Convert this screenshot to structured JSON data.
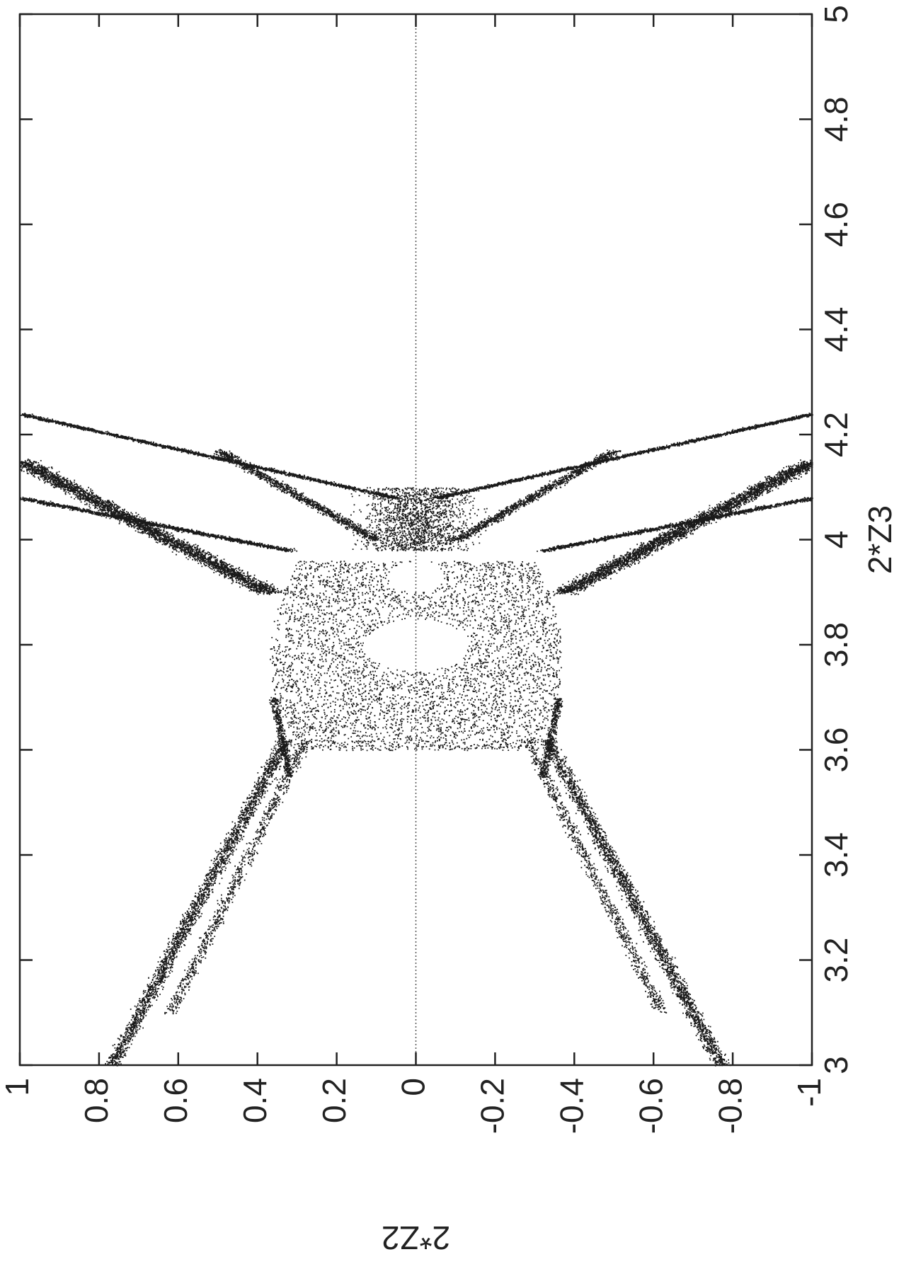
{
  "chart_data": {
    "type": "scatter",
    "orientation": "rotated-90-clockwise",
    "xlabel": "2*Z3",
    "ylabel": "2*Z2",
    "xlim": [
      3,
      5
    ],
    "ylim": [
      -1,
      1
    ],
    "x_ticks": [
      3,
      3.2,
      3.4,
      3.6,
      3.8,
      4,
      4.2,
      4.4,
      4.6,
      4.8,
      5
    ],
    "x_tick_labels": [
      "3",
      "3.2",
      "3.4",
      "3.6",
      "3.8",
      "4",
      "4.2",
      "4.4",
      "4.6",
      "4.8",
      "5"
    ],
    "y_ticks": [
      1,
      0.8,
      0.6,
      0.4,
      0.2,
      0,
      -0.2,
      -0.4,
      -0.6,
      -0.8,
      -1
    ],
    "y_tick_labels": [
      "1",
      "0.8",
      "0.6",
      "0.4",
      "0.2",
      "0",
      "-0.2",
      "-0.4",
      "-0.6",
      "-0.8",
      "-1"
    ],
    "grid": false,
    "reference_line": {
      "axis": "y",
      "value": 0,
      "style": "dotted"
    },
    "point_color": "#1a1a1a",
    "series": [
      {
        "values": "dense chaotic point cloud",
        "structure": [
          {
            "part": "arm",
            "from": [
              3.0,
              0.76
            ],
            "to": [
              3.62,
              0.33
            ]
          },
          {
            "part": "arm",
            "from": [
              3.0,
              -0.76
            ],
            "to": [
              3.62,
              -0.33
            ]
          },
          {
            "part": "central-body",
            "x_range": [
              3.6,
              3.95
            ],
            "y_range": [
              -0.37,
              0.37
            ]
          },
          {
            "part": "hole",
            "center": [
              3.8,
              0.0
            ],
            "half_widths": [
              0.05,
              0.13
            ]
          },
          {
            "part": "hole",
            "center": [
              3.93,
              0.0
            ],
            "half_widths": [
              0.03,
              0.07
            ]
          },
          {
            "part": "band",
            "from": [
              3.9,
              0.37
            ],
            "to": [
              4.15,
              1.0
            ]
          },
          {
            "part": "band",
            "from": [
              3.9,
              -0.37
            ],
            "to": [
              4.15,
              -1.0
            ]
          },
          {
            "part": "band",
            "from": [
              3.98,
              0.33
            ],
            "to": [
              4.08,
              1.0
            ]
          },
          {
            "part": "band",
            "from": [
              3.98,
              -0.33
            ],
            "to": [
              4.08,
              -1.0
            ]
          },
          {
            "part": "outer-band",
            "from": [
              4.08,
              0.0
            ],
            "to": [
              4.24,
              1.0
            ]
          },
          {
            "part": "outer-band",
            "from": [
              4.08,
              0.0
            ],
            "to": [
              4.24,
              -1.0
            ]
          },
          {
            "part": "inner-loop-lobe",
            "from": [
              4.0,
              0.05
            ],
            "to": [
              4.25,
              0.45
            ]
          },
          {
            "part": "inner-loop-lobe",
            "from": [
              4.0,
              -0.05
            ],
            "to": [
              4.25,
              -0.45
            ]
          }
        ]
      }
    ]
  }
}
